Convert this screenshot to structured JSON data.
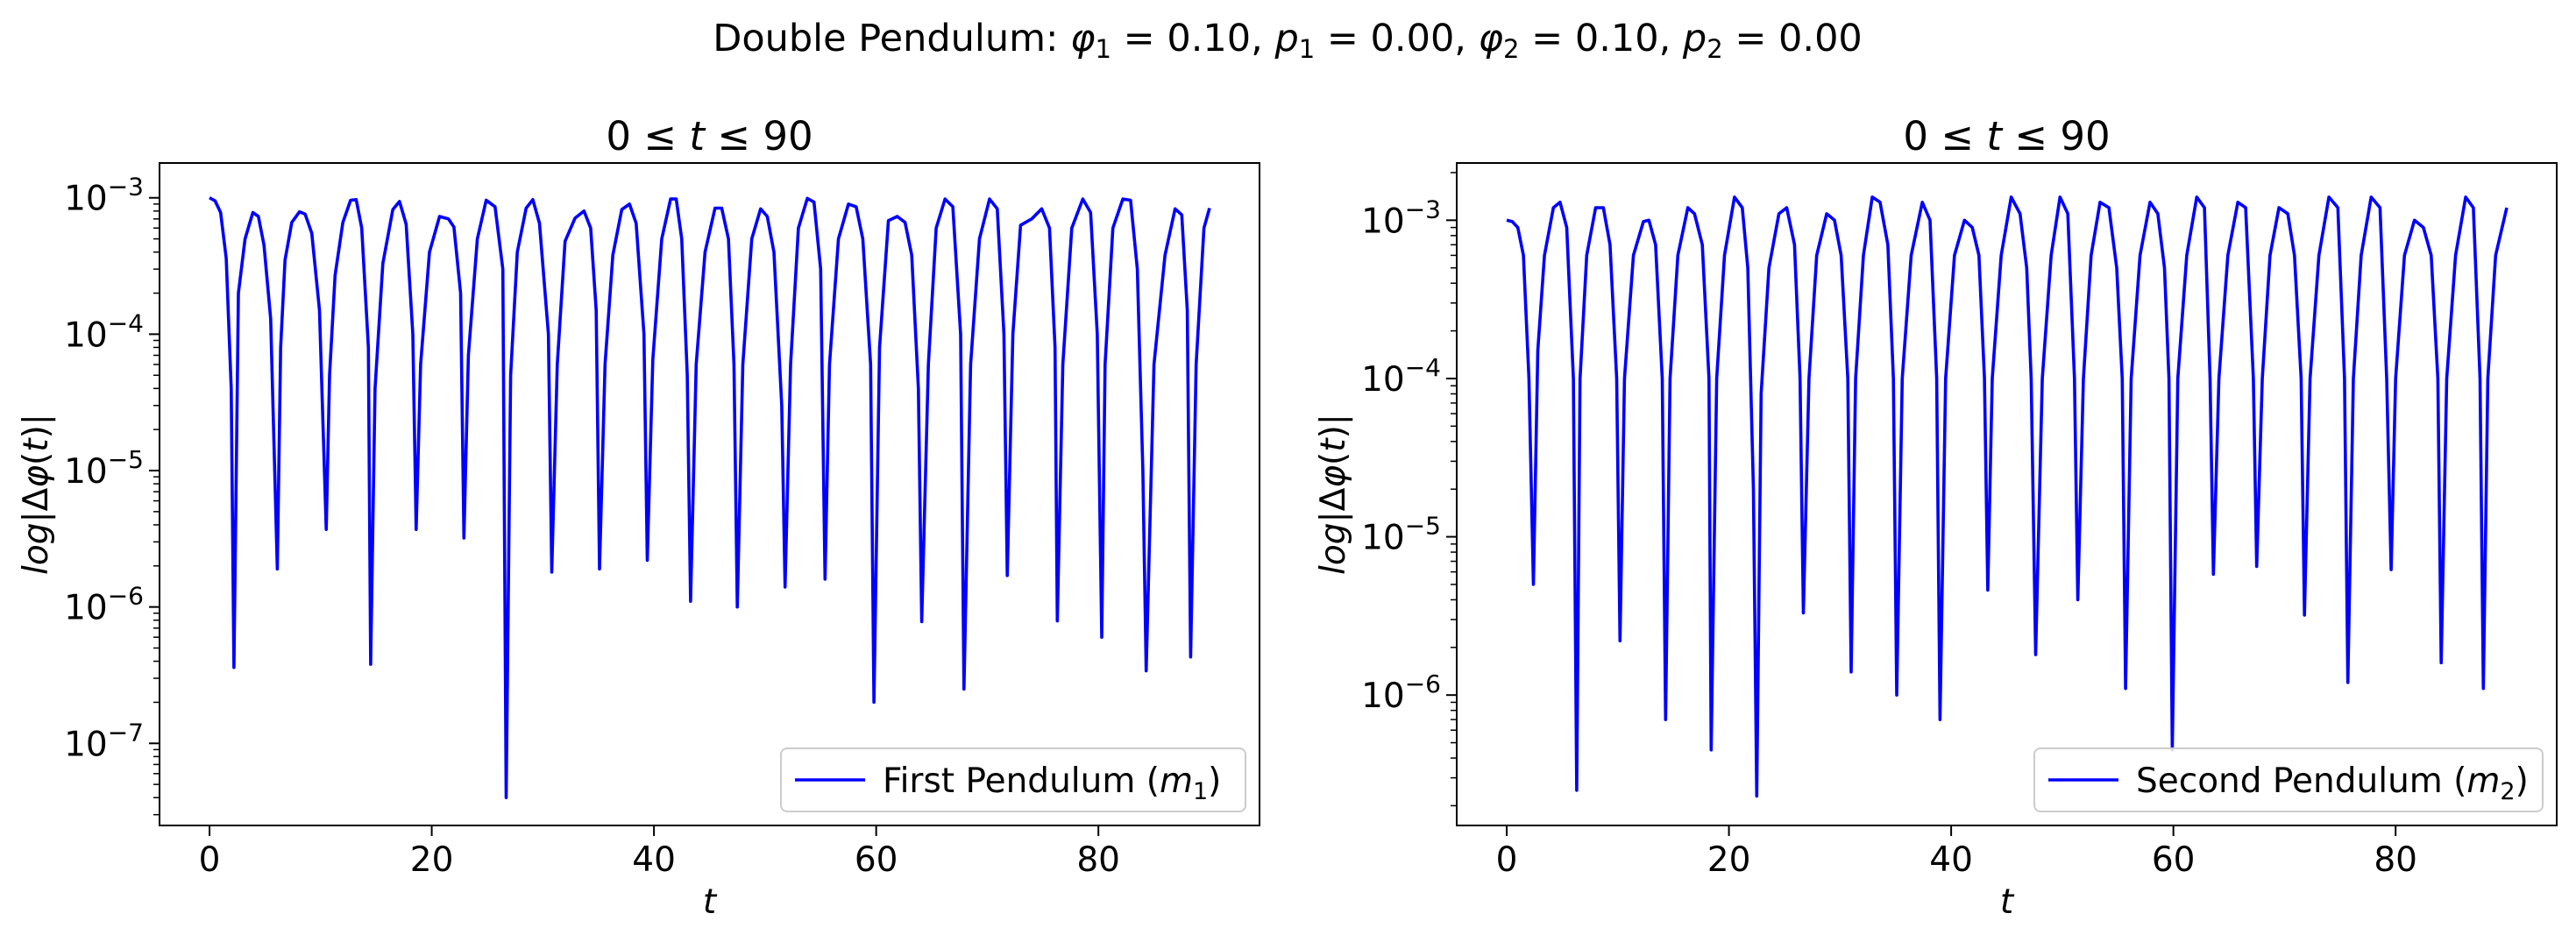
{
  "figure": {
    "suptitle_prefix": "Double Pendulum:",
    "suptitle_params": [
      {
        "sym": "φ",
        "sub": "1",
        "value": "0.10"
      },
      {
        "sym": "p",
        "sub": "1",
        "value": "0.00"
      },
      {
        "sym": "φ",
        "sub": "2",
        "value": "0.10"
      },
      {
        "sym": "p",
        "sub": "2",
        "value": "0.00"
      }
    ],
    "line_color": "#0000ff"
  },
  "chart_data": [
    {
      "type": "line",
      "title": "0 ≤ t ≤ 90",
      "xlabel": "t",
      "ylabel": "log|Δφ(t)|",
      "yscale": "log",
      "xlim": [
        -4.5,
        94.5
      ],
      "ylim": [
        2.5e-08,
        0.0018
      ],
      "xticks": [
        0,
        20,
        40,
        60,
        80
      ],
      "yticks": [
        {
          "value": 1e-07,
          "base": "10",
          "exp": "−7"
        },
        {
          "value": 1e-06,
          "base": "10",
          "exp": "−6"
        },
        {
          "value": 1e-05,
          "base": "10",
          "exp": "−5"
        },
        {
          "value": 0.0001,
          "base": "10",
          "exp": "−4"
        },
        {
          "value": 0.001,
          "base": "10",
          "exp": "−3"
        }
      ],
      "legend": {
        "text": "First Pendulum (m",
        "sub": "1",
        "close": ")",
        "position": "lower right"
      },
      "series": [
        {
          "name": "First Pendulum (m1)",
          "color": "#0000ff",
          "x": [
            0.0,
            0.5,
            1.0,
            1.5,
            1.95,
            2.2,
            2.6,
            3.2,
            3.9,
            4.4,
            4.9,
            5.5,
            6.1,
            6.4,
            6.8,
            7.4,
            8.1,
            8.6,
            9.2,
            9.9,
            10.5,
            10.8,
            11.3,
            12.0,
            12.7,
            13.2,
            13.7,
            14.3,
            14.5,
            14.9,
            15.6,
            16.5,
            17.1,
            17.7,
            18.3,
            18.6,
            19.0,
            19.8,
            20.7,
            21.5,
            22.0,
            22.6,
            22.9,
            23.3,
            24.1,
            24.9,
            25.7,
            26.4,
            26.7,
            27.1,
            27.7,
            28.5,
            29.1,
            29.7,
            30.5,
            30.8,
            31.3,
            32.0,
            32.9,
            33.7,
            34.3,
            34.8,
            35.1,
            35.6,
            36.3,
            37.1,
            37.8,
            38.4,
            39.1,
            39.4,
            39.9,
            40.7,
            41.5,
            42.0,
            42.5,
            43.0,
            43.3,
            43.8,
            44.6,
            45.5,
            46.1,
            46.7,
            47.2,
            47.5,
            48.0,
            48.8,
            49.6,
            50.2,
            50.8,
            51.5,
            51.8,
            52.3,
            53.0,
            53.8,
            54.4,
            55.0,
            55.4,
            55.8,
            56.6,
            57.5,
            58.2,
            58.8,
            59.5,
            59.8,
            60.3,
            61.1,
            61.9,
            62.6,
            63.2,
            63.8,
            64.1,
            64.7,
            65.4,
            66.2,
            66.9,
            67.6,
            67.9,
            68.5,
            69.3,
            70.2,
            70.9,
            71.5,
            71.8,
            72.3,
            73.0,
            74.0,
            74.9,
            75.6,
            76.1,
            76.3,
            76.8,
            77.6,
            78.6,
            79.3,
            79.9,
            80.3,
            80.6,
            81.3,
            82.2,
            82.9,
            83.5,
            84.0,
            84.3,
            85.0,
            86.0,
            86.9,
            87.5,
            88.0,
            88.3,
            88.8,
            89.5,
            90.0
          ],
          "y": [
            0.001,
            0.00095,
            0.00078,
            0.00036,
            4e-05,
            3.6e-07,
            0.0002,
            0.0005,
            0.00078,
            0.00073,
            0.00045,
            0.00013,
            1.9e-06,
            8e-05,
            0.00035,
            0.00066,
            0.00079,
            0.00076,
            0.00055,
            0.00015,
            3.7e-06,
            5e-05,
            0.00027,
            0.00066,
            0.00096,
            0.00097,
            0.0006,
            8e-05,
            3.8e-07,
            4e-05,
            0.00033,
            0.00082,
            0.00094,
            0.00064,
            0.0001,
            3.7e-06,
            6e-05,
            0.0004,
            0.00073,
            0.0007,
            0.00061,
            0.0002,
            3.2e-06,
            7e-05,
            0.0005,
            0.00096,
            0.00086,
            0.0003,
            4e-08,
            5e-05,
            0.0004,
            0.00084,
            0.00097,
            0.00065,
            0.0001,
            1.8e-06,
            6e-05,
            0.00048,
            0.00071,
            0.0008,
            0.0006,
            0.00015,
            1.9e-06,
            6e-05,
            0.00038,
            0.00082,
            0.0009,
            0.00065,
            0.0001,
            2.2e-06,
            6.5e-05,
            0.0005,
            0.00098,
            0.00098,
            0.0005,
            5e-05,
            1.1e-06,
            6e-05,
            0.0004,
            0.00084,
            0.00084,
            0.0005,
            6e-05,
            1e-06,
            6e-05,
            0.0005,
            0.00083,
            0.00073,
            0.0004,
            3e-05,
            1.4e-06,
            6e-05,
            0.0006,
            0.00099,
            0.00093,
            0.0003,
            1.6e-06,
            6e-05,
            0.0005,
            0.0009,
            0.00086,
            0.0005,
            6e-05,
            2e-07,
            8e-05,
            0.00068,
            0.00073,
            0.00066,
            0.00038,
            4e-05,
            7.8e-07,
            6e-05,
            0.0006,
            0.00098,
            0.00086,
            0.0001,
            2.5e-07,
            6e-05,
            0.0005,
            0.00098,
            0.00083,
            0.0001,
            1.7e-06,
            0.0001,
            0.00063,
            0.0007,
            0.00083,
            0.0006,
            8e-05,
            7.9e-07,
            6e-05,
            0.0006,
            0.00098,
            0.00078,
            0.0001,
            6e-07,
            6e-05,
            0.0006,
            0.00098,
            0.00096,
            0.0003,
            1e-05,
            3.4e-07,
            6e-05,
            0.00038,
            0.00083,
            0.00075,
            0.00015,
            4.3e-07,
            6e-05,
            0.0006,
            0.00084
          ]
        }
      ]
    },
    {
      "type": "line",
      "title": "0 ≤ t ≤ 90",
      "xlabel": "t",
      "ylabel": "log|Δφ(t)|",
      "yscale": "log",
      "xlim": [
        -4.5,
        94.5
      ],
      "ylim": [
        1.5e-07,
        0.0023
      ],
      "xticks": [
        0,
        20,
        40,
        60,
        80
      ],
      "yticks": [
        {
          "value": 1e-06,
          "base": "10",
          "exp": "−6"
        },
        {
          "value": 1e-05,
          "base": "10",
          "exp": "−5"
        },
        {
          "value": 0.0001,
          "base": "10",
          "exp": "−4"
        },
        {
          "value": 0.001,
          "base": "10",
          "exp": "−3"
        }
      ],
      "legend": {
        "text": "Second Pendulum (m",
        "sub": "2",
        "close": ")",
        "position": "lower right"
      },
      "series": [
        {
          "name": "Second Pendulum (m2)",
          "color": "#0000ff",
          "x": [
            0.0,
            0.5,
            1.0,
            1.5,
            2.0,
            2.4,
            2.8,
            3.4,
            4.2,
            4.8,
            5.4,
            6.0,
            6.3,
            6.6,
            7.2,
            8.0,
            8.7,
            9.3,
            9.9,
            10.2,
            10.6,
            11.4,
            12.3,
            12.8,
            13.4,
            14.0,
            14.3,
            14.7,
            15.4,
            16.3,
            16.9,
            17.6,
            18.2,
            18.4,
            18.9,
            19.6,
            20.5,
            21.2,
            21.7,
            22.2,
            22.5,
            22.9,
            23.6,
            24.5,
            25.2,
            25.9,
            26.4,
            26.7,
            27.2,
            27.9,
            28.8,
            29.5,
            30.1,
            30.7,
            31.0,
            31.4,
            32.1,
            32.9,
            33.6,
            34.3,
            34.8,
            35.1,
            35.6,
            36.4,
            37.4,
            38.1,
            38.7,
            39.0,
            39.5,
            40.3,
            41.2,
            41.9,
            42.5,
            43.0,
            43.3,
            43.7,
            44.5,
            45.4,
            46.2,
            46.8,
            47.2,
            47.6,
            48.2,
            49.0,
            49.8,
            50.5,
            51.1,
            51.4,
            51.9,
            52.6,
            53.4,
            54.2,
            54.9,
            55.4,
            55.7,
            56.2,
            57.0,
            57.9,
            58.6,
            59.2,
            59.6,
            59.9,
            60.4,
            61.2,
            62.1,
            62.8,
            63.3,
            63.6,
            64.1,
            64.9,
            65.8,
            66.5,
            67.2,
            67.5,
            68.0,
            68.7,
            69.5,
            70.3,
            70.9,
            71.5,
            71.8,
            72.3,
            73.1,
            74.0,
            74.8,
            75.4,
            75.7,
            76.2,
            76.9,
            77.8,
            78.6,
            79.2,
            79.6,
            80.0,
            80.8,
            81.7,
            82.5,
            83.2,
            83.8,
            84.1,
            84.6,
            85.4,
            86.3,
            87.0,
            87.6,
            87.9,
            88.3,
            89.0,
            90.0
          ],
          "y": [
            0.001,
            0.00098,
            0.0009,
            0.0006,
            0.0001,
            5e-06,
            0.00015,
            0.0006,
            0.0012,
            0.0013,
            0.0009,
            0.0001,
            2.5e-07,
            0.0001,
            0.0006,
            0.0012,
            0.0012,
            0.0007,
            0.0001,
            2.2e-06,
            0.0001,
            0.0006,
            0.00098,
            0.001,
            0.0007,
            0.0001,
            7e-07,
            0.0001,
            0.0006,
            0.0012,
            0.0011,
            0.0007,
            0.0001,
            4.5e-07,
            0.0001,
            0.0006,
            0.0014,
            0.0012,
            0.0005,
            2e-05,
            2.3e-07,
            8e-05,
            0.0005,
            0.0011,
            0.0012,
            0.0007,
            0.0001,
            3.3e-06,
            0.0001,
            0.0006,
            0.0011,
            0.001,
            0.0006,
            0.0001,
            1.4e-06,
            0.0001,
            0.0006,
            0.0014,
            0.0013,
            0.0007,
            0.0001,
            1e-06,
            0.0001,
            0.0006,
            0.0013,
            0.001,
            0.0001,
            7e-07,
            0.0001,
            0.0006,
            0.001,
            0.0009,
            0.0006,
            0.0001,
            4.6e-06,
            0.0001,
            0.0006,
            0.0014,
            0.0011,
            0.0005,
            0.0001,
            1.8e-06,
            0.0001,
            0.0006,
            0.0014,
            0.0011,
            0.0001,
            4e-06,
            0.0001,
            0.0006,
            0.0013,
            0.0012,
            0.0005,
            0.0001,
            1.1e-06,
            0.0001,
            0.0006,
            0.0013,
            0.0011,
            0.0005,
            0.0001,
            4.5e-07,
            0.0001,
            0.0006,
            0.0014,
            0.0012,
            0.0001,
            5.8e-06,
            0.0001,
            0.0006,
            0.0013,
            0.0012,
            0.0001,
            6.5e-06,
            0.0001,
            0.0006,
            0.0012,
            0.0011,
            0.0006,
            0.0001,
            3.2e-06,
            0.0001,
            0.0006,
            0.0014,
            0.0012,
            0.0001,
            1.2e-06,
            0.0001,
            0.0006,
            0.0014,
            0.0012,
            0.0001,
            6.2e-06,
            0.0001,
            0.0006,
            0.001,
            0.0009,
            0.0006,
            0.0001,
            1.6e-06,
            0.0001,
            0.0006,
            0.0014,
            0.0012,
            0.0001,
            1.1e-06,
            0.0001,
            0.0006,
            0.0012
          ]
        }
      ]
    }
  ]
}
